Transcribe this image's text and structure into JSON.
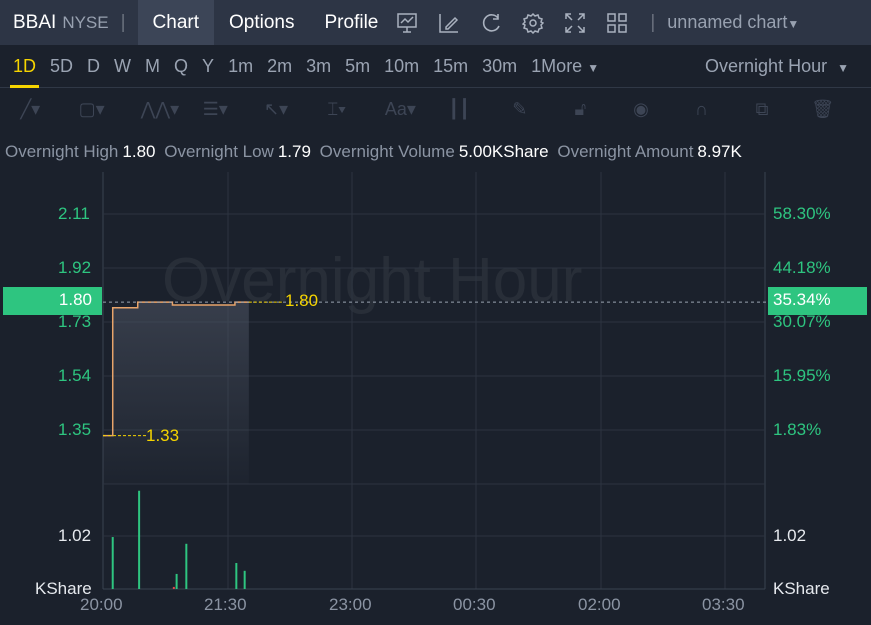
{
  "header": {
    "symbol": "BBAI",
    "exchange": "NYSE",
    "tabs": [
      "Chart",
      "Options",
      "Profile"
    ],
    "active_tab": "Chart",
    "icons": [
      "indicator-icon",
      "draw-icon",
      "refresh-icon",
      "settings-icon",
      "fullscreen-icon",
      "layout-icon"
    ],
    "chart_name": "unnamed chart"
  },
  "periods": {
    "items": [
      "1D",
      "5D",
      "D",
      "W",
      "M",
      "Q",
      "Y",
      "1m",
      "2m",
      "3m",
      "5m",
      "10m",
      "15m",
      "30m",
      "1More"
    ],
    "active": "1D",
    "session": "Overnight Hour"
  },
  "tools": [
    "line-tool-icon",
    "rectangle-tool-icon",
    "pattern-tool-icon",
    "fib-tool-icon",
    "arrow-tool-icon",
    "measure-tool-icon",
    "text-tool-icon",
    "candle-tool-icon",
    "pen-icon",
    "lock-icon",
    "eye-icon",
    "magnet-icon",
    "clone-icon",
    "trash-icon"
  ],
  "stats": [
    {
      "k": "Overnight High",
      "v": "1.80"
    },
    {
      "k": "Overnight Low",
      "v": "1.79"
    },
    {
      "k": "Overnight Volume",
      "v": "5.00KShare"
    },
    {
      "k": "Overnight Amount",
      "v": "8.97K"
    }
  ],
  "chart": {
    "watermark": "Overnight Hour",
    "price_ticks": [
      "2.11",
      "1.92",
      "1.73",
      "1.54",
      "1.35"
    ],
    "pct_ticks": [
      "58.30%",
      "44.18%",
      "30.07%",
      "15.95%",
      "1.83%"
    ],
    "current_price": "1.80",
    "current_pct": "35.34%",
    "low_label": "1.33",
    "high_label": "1.80",
    "volume_tick": "1.02",
    "volume_unit": "KShare",
    "x_ticks": [
      "20:00",
      "21:30",
      "23:00",
      "00:30",
      "02:00",
      "03:30"
    ],
    "colors": {
      "up": "#2ec580",
      "down": "#e0474c",
      "line": "#e8a46a",
      "accent": "#f5d400"
    }
  },
  "chart_data": {
    "type": "line",
    "price": [
      {
        "t": "20:00",
        "v": 1.33
      },
      {
        "t": "20:07",
        "v": 1.33
      },
      {
        "t": "20:07",
        "v": 1.78
      },
      {
        "t": "20:25",
        "v": 1.78
      },
      {
        "t": "20:25",
        "v": 1.8
      },
      {
        "t": "20:50",
        "v": 1.8
      },
      {
        "t": "20:50",
        "v": 1.79
      },
      {
        "t": "21:35",
        "v": 1.79
      },
      {
        "t": "21:35",
        "v": 1.8
      },
      {
        "t": "21:45",
        "v": 1.8
      }
    ],
    "volume": [
      {
        "t": "20:07",
        "v": 1.0,
        "dir": "up"
      },
      {
        "t": "20:26",
        "v": 1.89,
        "dir": "up"
      },
      {
        "t": "20:51",
        "v": 0.04,
        "dir": "down"
      },
      {
        "t": "20:53",
        "v": 0.29,
        "dir": "up"
      },
      {
        "t": "21:00",
        "v": 0.87,
        "dir": "up"
      },
      {
        "t": "21:36",
        "v": 0.5,
        "dir": "up"
      },
      {
        "t": "21:42",
        "v": 0.35,
        "dir": "up"
      }
    ],
    "ylim": [
      1.02,
      2.2
    ]
  }
}
